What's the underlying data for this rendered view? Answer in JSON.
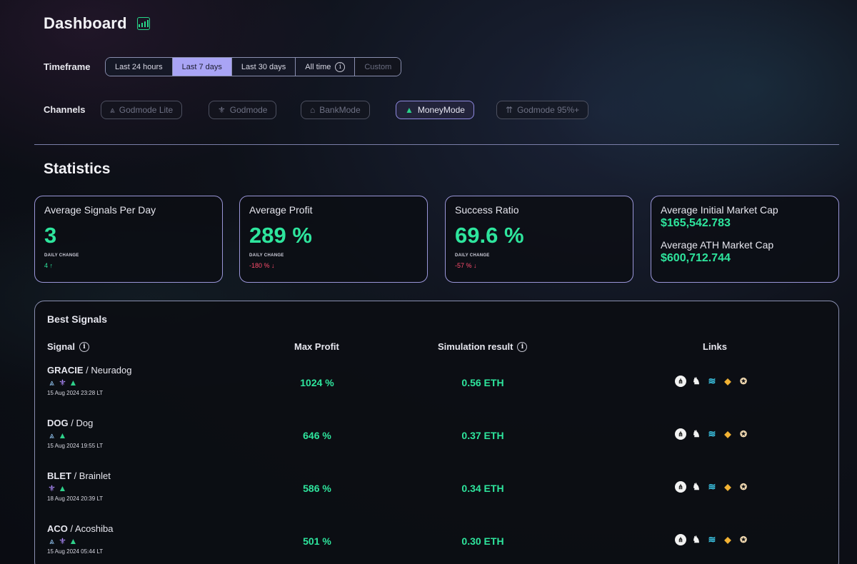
{
  "header": {
    "title": "Dashboard",
    "icon": "bar-chart-icon"
  },
  "timeframe": {
    "label": "Timeframe",
    "options": [
      "Last 24 hours",
      "Last 7 days",
      "Last 30 days",
      "All time",
      "Custom"
    ],
    "selected": "Last 7 days"
  },
  "channels": {
    "label": "Channels",
    "items": [
      "Godmode Lite",
      "Godmode",
      "BankMode",
      "MoneyMode",
      "Godmode 95%+"
    ],
    "selected": "MoneyMode"
  },
  "statistics": {
    "title": "Statistics",
    "cards": [
      {
        "title": "Average Signals Per Day",
        "value": "3",
        "sub": "DAILY CHANGE",
        "change": "4",
        "direction": "up"
      },
      {
        "title": "Average Profit",
        "value": "289 %",
        "sub": "DAILY CHANGE",
        "change": "-180 %",
        "direction": "down"
      },
      {
        "title": "Success Ratio",
        "value": "69.6 %",
        "sub": "DAILY CHANGE",
        "change": "-57 %",
        "direction": "down"
      }
    ],
    "market_cap": {
      "initial_label": "Average Initial Market Cap",
      "initial_value": "$165,542.783",
      "ath_label": "Average ATH Market Cap",
      "ath_value": "$600,712.744"
    }
  },
  "best_signals": {
    "title": "Best Signals",
    "columns": {
      "signal": "Signal",
      "max_profit": "Max Profit",
      "simulation": "Simulation result",
      "links": "Links"
    },
    "rows": [
      {
        "ticker": "GRACIE",
        "name": " / Neuradog",
        "date": "15 Aug 2024 23:28 LT",
        "profit": "1024 %",
        "sim": "0.56 ETH"
      },
      {
        "ticker": "DOG",
        "name": " / Dog",
        "date": "15 Aug 2024 19:55 LT",
        "profit": "646 %",
        "sim": "0.37 ETH"
      },
      {
        "ticker": "BLET",
        "name": " / Brainlet",
        "date": "18 Aug 2024 20:39 LT",
        "profit": "586 %",
        "sim": "0.34 ETH"
      },
      {
        "ticker": "ACO",
        "name": " / Acoshiba",
        "date": "15 Aug 2024 05:44 LT",
        "profit": "501 %",
        "sim": "0.30 ETH"
      }
    ]
  },
  "colors": {
    "accent": "#a9a4f5",
    "positive": "#2ee59d",
    "negative": "#ff4d6d",
    "border": "#9a96d8"
  }
}
